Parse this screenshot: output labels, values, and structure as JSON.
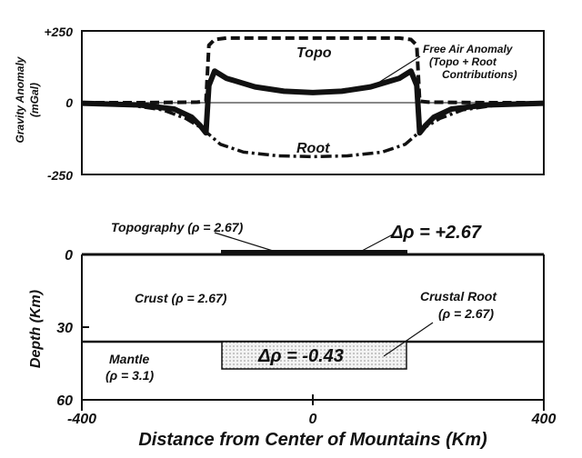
{
  "chart_data": [
    {
      "type": "line",
      "title": "",
      "ylabel": "Gravity Anomaly",
      "yunit": "(mGal)",
      "xlim": [
        -400,
        400
      ],
      "ylim": [
        -250,
        250
      ],
      "yticks": [
        "+250",
        "0",
        "-250"
      ],
      "series": [
        {
          "name": "Topo",
          "style": "dashed",
          "x": [
            -400,
            -300,
            -200,
            -185,
            -180,
            -170,
            -150,
            0,
            150,
            170,
            180,
            185,
            200,
            300,
            400
          ],
          "y": [
            0,
            0,
            2,
            5,
            200,
            220,
            225,
            225,
            225,
            220,
            200,
            5,
            2,
            0,
            0
          ]
        },
        {
          "name": "Root",
          "style": "dashdot",
          "x": [
            -400,
            -320,
            -260,
            -220,
            -195,
            -180,
            -160,
            -120,
            -60,
            0,
            60,
            120,
            160,
            180,
            195,
            220,
            260,
            320,
            400
          ],
          "y": [
            -2,
            -8,
            -25,
            -55,
            -85,
            -110,
            -145,
            -172,
            -185,
            -188,
            -185,
            -172,
            -145,
            -110,
            -85,
            -55,
            -25,
            -8,
            -2
          ]
        },
        {
          "name": "Free Air Anomaly",
          "style": "solid",
          "x": [
            -400,
            -300,
            -240,
            -210,
            -195,
            -185,
            -180,
            -170,
            -150,
            -100,
            -50,
            0,
            50,
            100,
            150,
            170,
            180,
            185,
            195,
            210,
            240,
            300,
            400
          ],
          "y": [
            -2,
            -8,
            -22,
            -50,
            -80,
            -105,
            60,
            110,
            85,
            55,
            40,
            35,
            40,
            55,
            85,
            110,
            60,
            -105,
            -80,
            -50,
            -22,
            -8,
            -2
          ]
        }
      ],
      "annotations": [
        {
          "text": "Topo",
          "x": -20,
          "y": 200
        },
        {
          "text": "Root",
          "x": 10,
          "y": -160
        },
        {
          "text": "Free Air Anomaly",
          "x": 290,
          "y": 225
        },
        {
          "text": "(Topo + Root",
          "x": 290,
          "y": 195
        },
        {
          "text": "Contributions)",
          "x": 290,
          "y": 170
        }
      ]
    },
    {
      "type": "cross-section",
      "xlabel": "Distance from Center of Mountains (Km)",
      "ylabel": "Depth (Km)",
      "xlim": [
        -400,
        400
      ],
      "ylim": [
        60,
        0
      ],
      "xticks": [
        "-400",
        "0",
        "400"
      ],
      "yticks": [
        "0",
        "30",
        "60"
      ],
      "regions": [
        {
          "name": "Topography",
          "label": "Topography (ρ = 2.67)",
          "x": [
            -180,
            180
          ],
          "depth": [
            -1,
            0
          ],
          "delta_label": "Δρ = +2.67"
        },
        {
          "name": "Crust",
          "label": "Crust (ρ = 2.67)",
          "x": [
            -400,
            400
          ],
          "depth": [
            0,
            36
          ]
        },
        {
          "name": "Crustal Root",
          "label_line1": "Crustal Root",
          "label_line2": "(ρ = 2.67)",
          "x": [
            -180,
            180
          ],
          "depth": [
            36,
            47
          ],
          "delta_label": "Δρ = -0.43"
        },
        {
          "name": "Mantle",
          "label_line1": "Mantle",
          "label_line2": "(ρ = 3.1)",
          "x": [
            -400,
            400
          ],
          "depth": [
            36,
            60
          ]
        }
      ]
    }
  ]
}
